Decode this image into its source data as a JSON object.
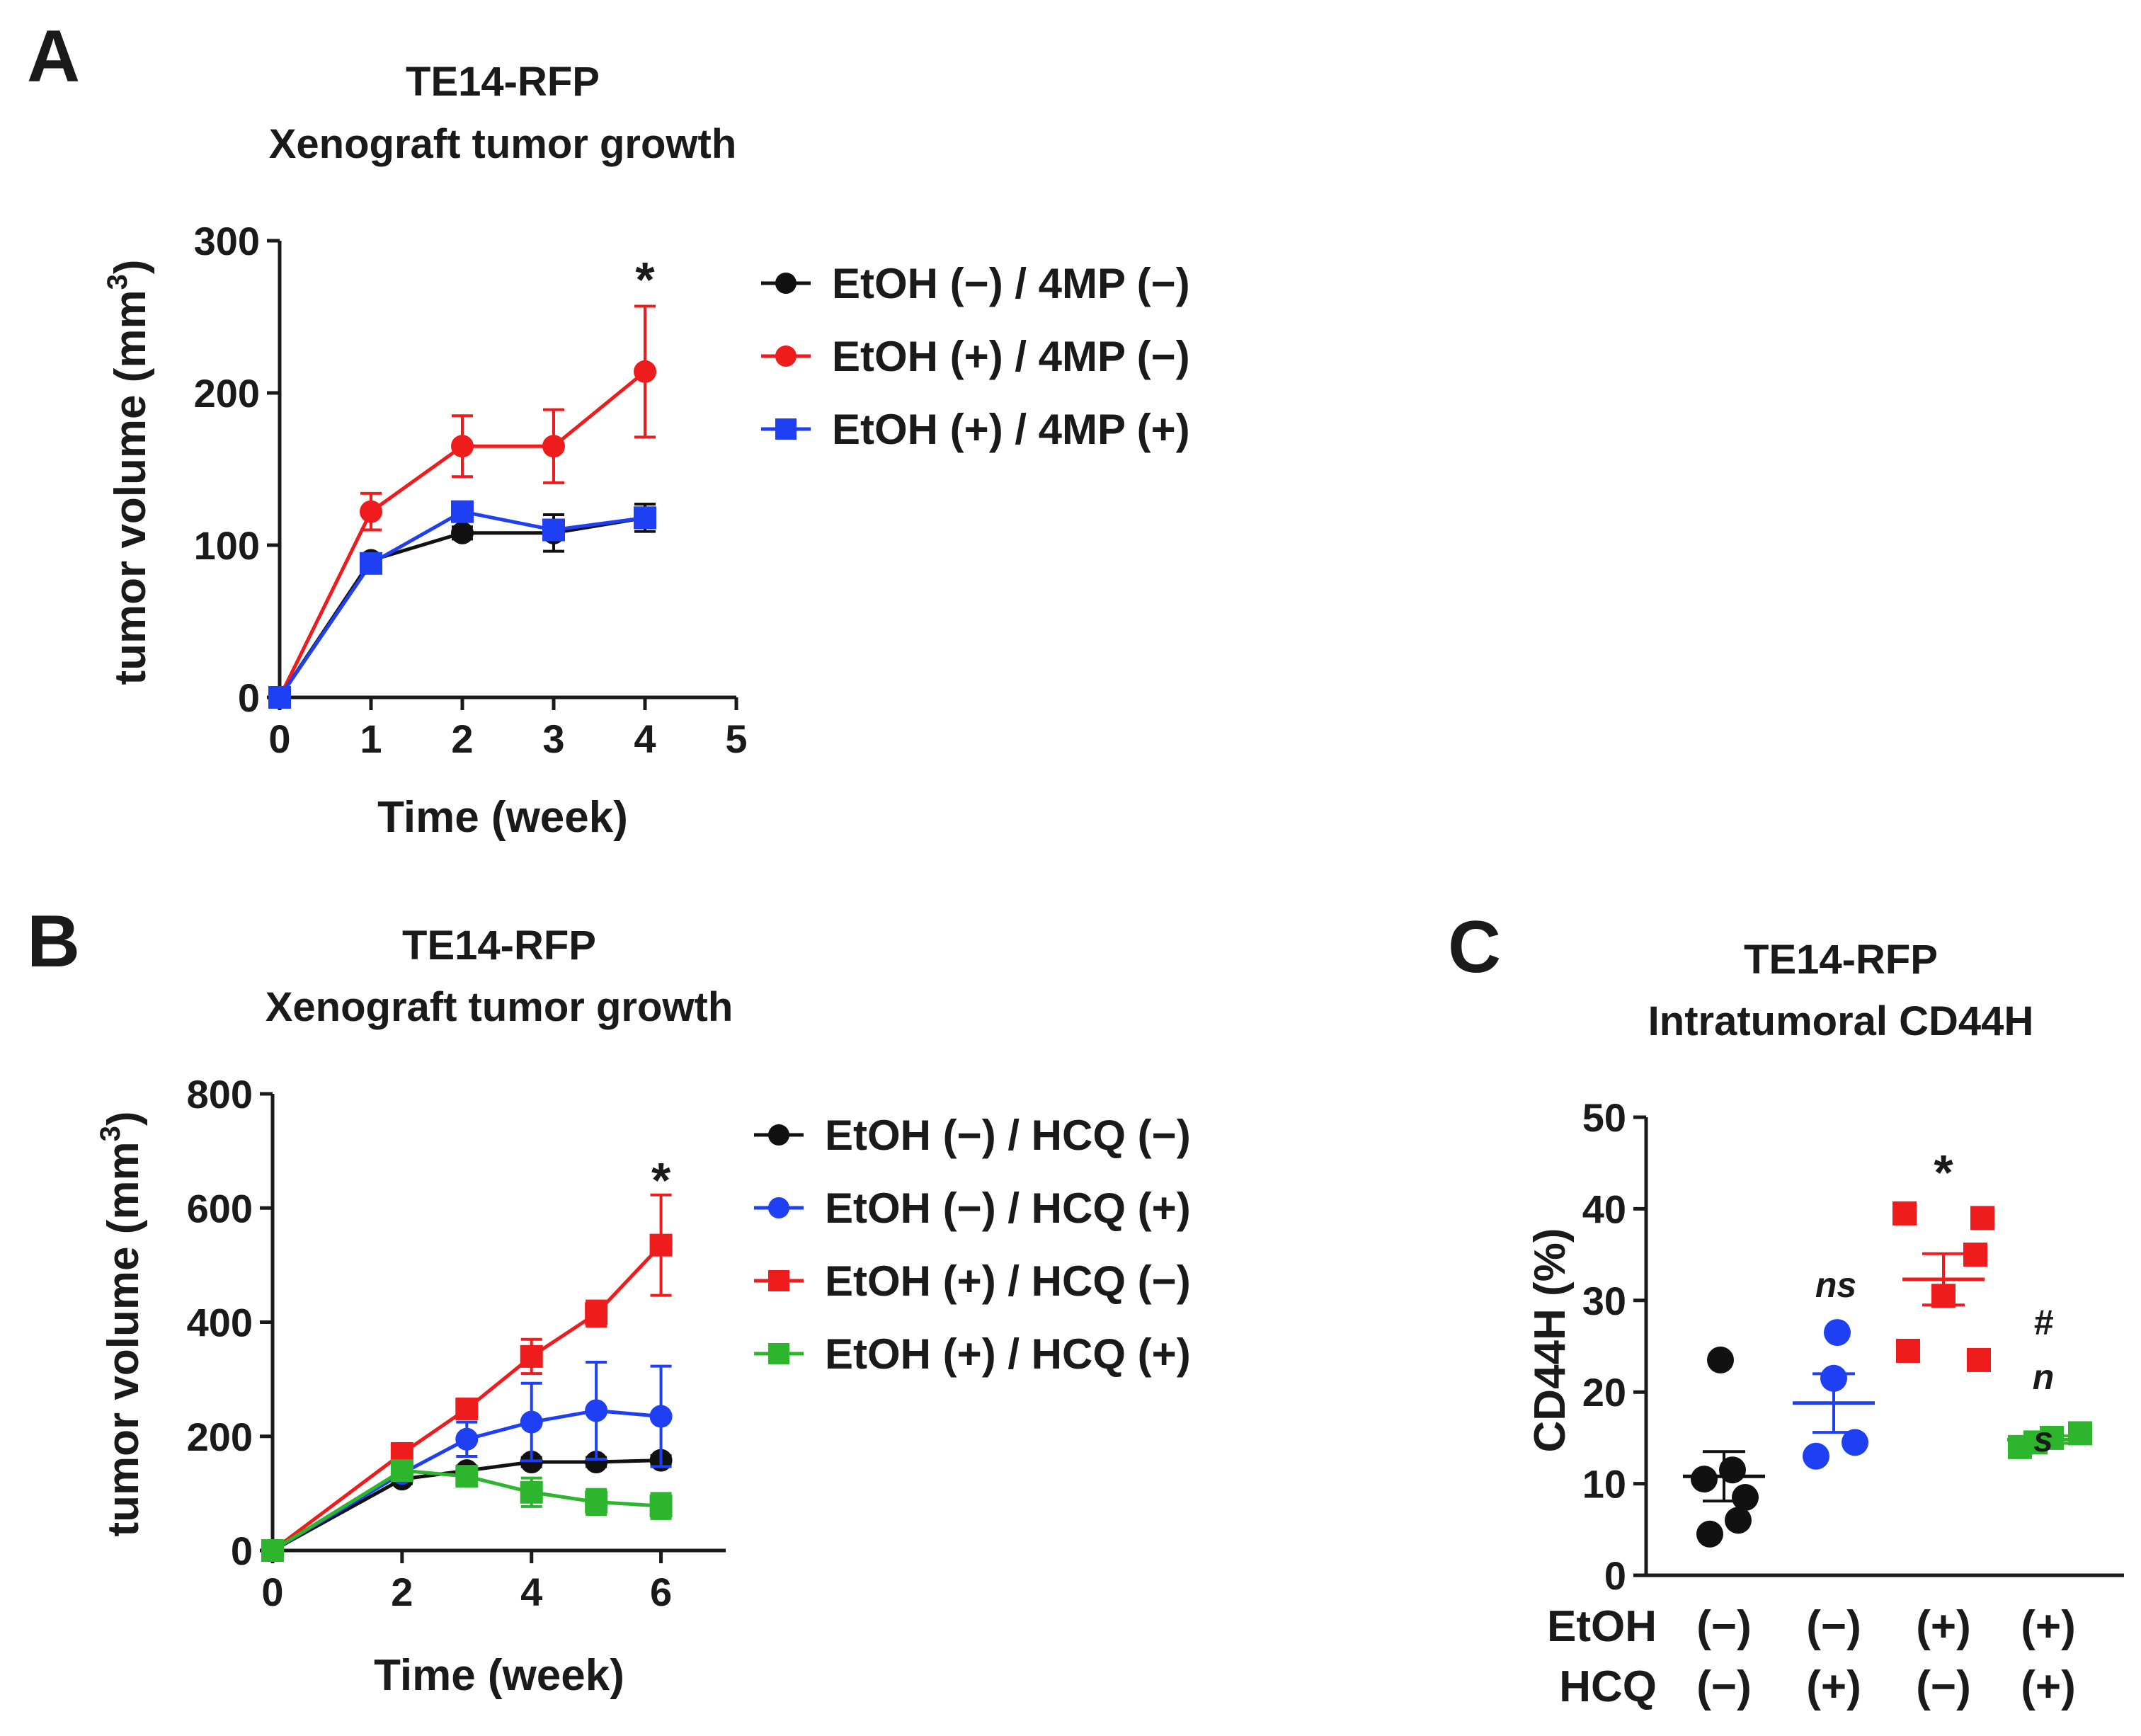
{
  "colors": {
    "black": "#111111",
    "red": "#ee1c1c",
    "blue": "#1f3ff2",
    "green": "#2db62d"
  },
  "chart_data": [
    {
      "panel": "A",
      "type": "line",
      "title": [
        "TE14-RFP",
        "Xenograft tumor growth"
      ],
      "xlabel": "Time (week)",
      "ylabel": "tumor volume (mm",
      "ylabel_sup": "3",
      "ylabel_close": ")",
      "xlim": [
        0,
        5
      ],
      "ylim": [
        0,
        300
      ],
      "xticks": [
        "0",
        "1",
        "2",
        "3",
        "4",
        "5"
      ],
      "yticks": [
        "0",
        "100",
        "200",
        "300"
      ],
      "annotations": [
        {
          "text": "*",
          "x": 4,
          "y": 275
        }
      ],
      "series": [
        {
          "name": "EtOH (−) / 4MP (−)",
          "marker": "circle",
          "color": "#111111",
          "x": [
            0,
            1,
            2,
            3,
            4
          ],
          "y": [
            0,
            90,
            108,
            108,
            118
          ],
          "err": [
            0,
            4,
            4,
            12,
            9
          ]
        },
        {
          "name": "EtOH (+) / 4MP (−)",
          "marker": "circle",
          "color": "#ee1c1c",
          "x": [
            0,
            1,
            2,
            3,
            4
          ],
          "y": [
            0,
            122,
            165,
            165,
            214
          ],
          "err": [
            0,
            12,
            20,
            24,
            43
          ]
        },
        {
          "name": "EtOH (+) / 4MP (+)",
          "marker": "square",
          "color": "#1f3ff2",
          "x": [
            0,
            1,
            2,
            3,
            4
          ],
          "y": [
            0,
            88,
            122,
            110,
            118
          ],
          "err": [
            0,
            3,
            4,
            6,
            6
          ]
        }
      ]
    },
    {
      "panel": "B",
      "type": "line",
      "title": [
        "TE14-RFP",
        "Xenograft tumor growth"
      ],
      "xlabel": "Time (week)",
      "ylabel": "tumor volume (mm",
      "ylabel_sup": "3",
      "ylabel_close": ")",
      "xlim": [
        0,
        7
      ],
      "ylim": [
        0,
        800
      ],
      "xticks": [
        "0",
        "2",
        "4",
        "6"
      ],
      "yticks": [
        "0",
        "200",
        "400",
        "600",
        "800"
      ],
      "annotations": [
        {
          "text": "*",
          "x": 6,
          "y": 650
        }
      ],
      "series": [
        {
          "name": "EtOH (−) / HCQ (−)",
          "marker": "circle",
          "color": "#111111",
          "x": [
            0,
            2,
            3,
            4,
            5,
            6
          ],
          "y": [
            0,
            125,
            140,
            155,
            155,
            158
          ],
          "err": [
            0,
            8,
            8,
            8,
            8,
            8
          ]
        },
        {
          "name": "EtOH (−) / HCQ (+)",
          "marker": "circle",
          "color": "#1f3ff2",
          "x": [
            0,
            2,
            3,
            4,
            5,
            6
          ],
          "y": [
            0,
            135,
            195,
            225,
            245,
            235
          ],
          "err": [
            0,
            12,
            30,
            68,
            85,
            88
          ]
        },
        {
          "name": "EtOH (+) / HCQ (−)",
          "marker": "square",
          "color": "#ee1c1c",
          "x": [
            0,
            2,
            3,
            4,
            5,
            6
          ],
          "y": [
            0,
            170,
            248,
            340,
            415,
            535
          ],
          "err": [
            0,
            10,
            12,
            30,
            22,
            88
          ]
        },
        {
          "name": "EtOH (+) / HCQ (+)",
          "marker": "square",
          "color": "#2db62d",
          "x": [
            0,
            2,
            3,
            4,
            5,
            6
          ],
          "y": [
            0,
            140,
            130,
            102,
            85,
            78
          ],
          "err": [
            0,
            10,
            8,
            25,
            22,
            22
          ]
        }
      ]
    },
    {
      "panel": "C",
      "type": "scatter",
      "title": [
        "TE14-RFP",
        "Intratumoral CD44H"
      ],
      "ylabel": "CD44H (%)",
      "ylim": [
        0,
        50
      ],
      "yticks": [
        "0",
        "10",
        "20",
        "30",
        "40",
        "50"
      ],
      "row_labels": [
        "EtOH",
        "HCQ"
      ],
      "groups": [
        {
          "etoh": "(−)",
          "hcq": "(−)",
          "color": "#111111",
          "marker": "circle",
          "values": [
            23.5,
            11.5,
            10.5,
            8.5,
            6.0,
            4.5
          ],
          "mean": 10.8,
          "sem": 2.7,
          "annotation": []
        },
        {
          "etoh": "(−)",
          "hcq": "(+)",
          "color": "#1f3ff2",
          "marker": "circle",
          "values": [
            26.5,
            21.5,
            14.5,
            13.0
          ],
          "mean": 18.8,
          "sem": 3.2,
          "annotation": [
            "ns"
          ]
        },
        {
          "etoh": "(+)",
          "hcq": "(−)",
          "color": "#ee1c1c",
          "marker": "square",
          "values": [
            39.5,
            39.0,
            35.0,
            30.5,
            24.5,
            23.5
          ],
          "mean": 32.3,
          "sem": 2.8,
          "annotation": [
            "*"
          ]
        },
        {
          "etoh": "(+)",
          "hcq": "(+)",
          "color": "#2db62d",
          "marker": "square",
          "values": [
            15.5,
            15.0,
            14.5,
            14.0
          ],
          "mean": 14.8,
          "sem": 0.4,
          "annotation": [
            "#",
            "n",
            "s"
          ]
        }
      ]
    }
  ]
}
